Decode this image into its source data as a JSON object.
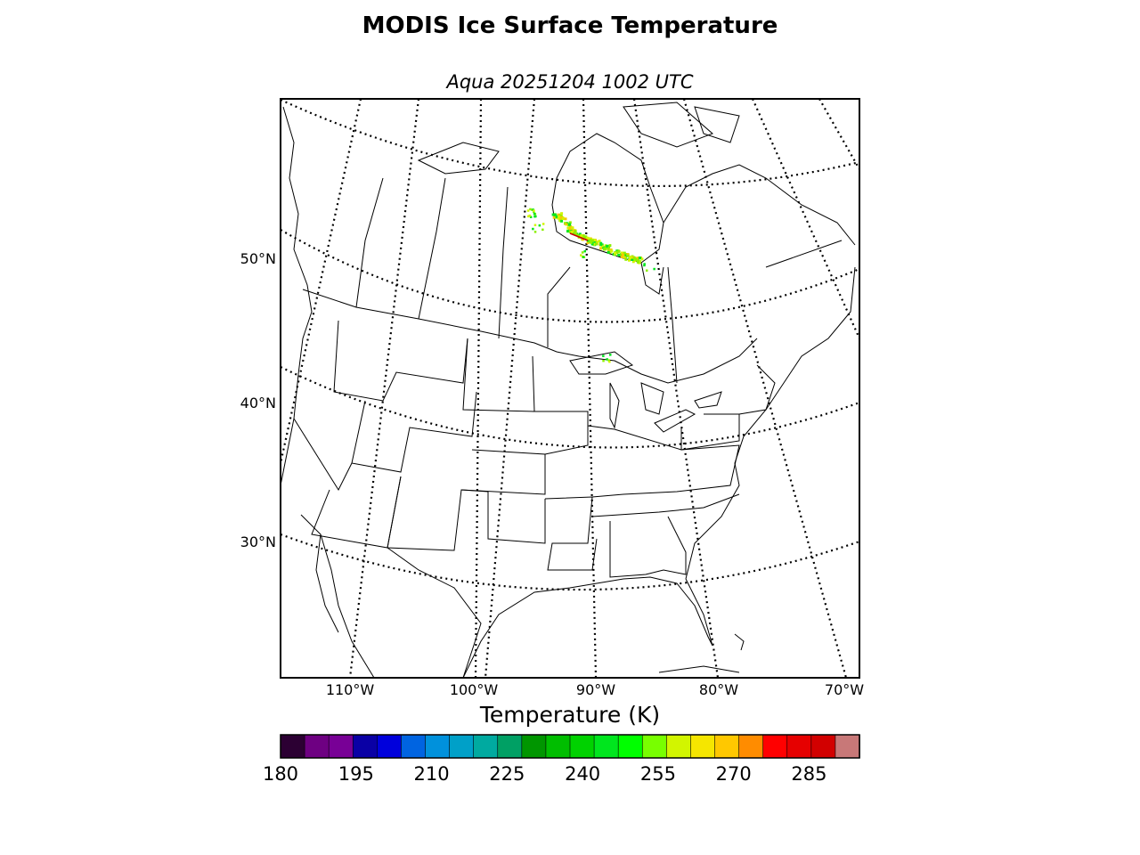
{
  "title": "MODIS Ice Surface Temperature",
  "subtitle": "Aqua 20251204 1002 UTC",
  "map": {
    "lat_labels": [
      "50°N",
      "40°N",
      "30°N"
    ],
    "lon_labels": [
      "110°W",
      "100°W",
      "90°W",
      "80°W",
      "70°W"
    ],
    "data_colors": [
      "#8cf000",
      "#d2f500",
      "#00e61e",
      "#f5c800",
      "#c80000"
    ]
  },
  "colorbar": {
    "label": "Temperature (K)",
    "tick_labels": [
      "180",
      "195",
      "210",
      "225",
      "240",
      "255",
      "270",
      "285"
    ],
    "range": [
      180,
      295
    ],
    "step": 5,
    "colors": [
      "#2c0033",
      "#6e0082",
      "#780096",
      "#0a00a5",
      "#0000dc",
      "#0064e1",
      "#0091dc",
      "#00a0c8",
      "#00aaa0",
      "#00a064",
      "#009600",
      "#00be00",
      "#00d200",
      "#00e61e",
      "#00ff00",
      "#78ff00",
      "#d2f500",
      "#f5e600",
      "#ffc800",
      "#ff8c00",
      "#ff0000",
      "#e60000",
      "#d20000",
      "#c87878"
    ]
  }
}
